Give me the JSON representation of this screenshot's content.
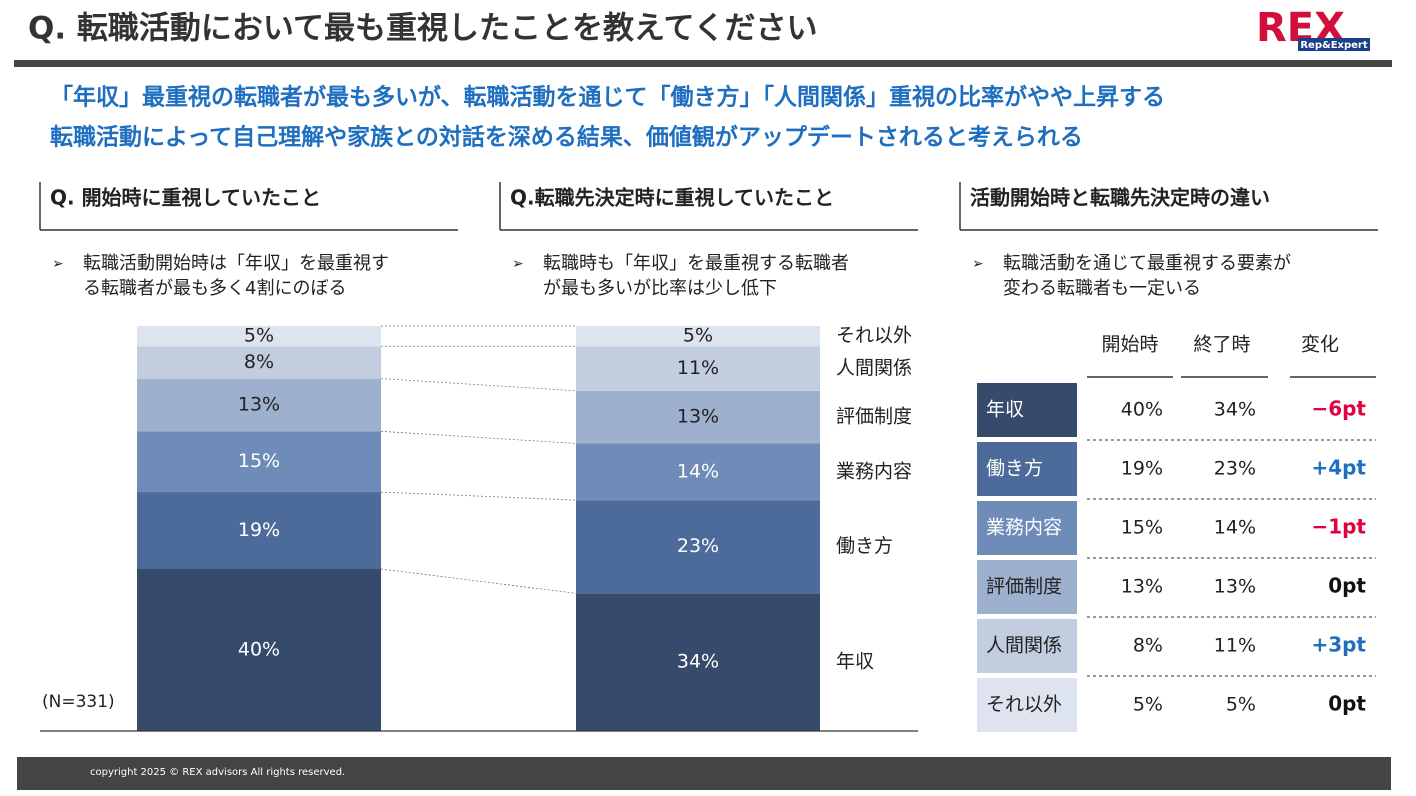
{
  "header": {
    "title": "Q. 転職活動において最も重視したことを教えてください",
    "logo": "REX",
    "logo_sub": "Rep&Expert"
  },
  "headline": [
    "「年収」最重視の転職者が最も多いが、転職活動を通じて「働き方」「人間関係」重視の比率がやや上昇する",
    "転職活動によって自己理解や家族との対話を深める結果、価値観がアップデートされると考えられる"
  ],
  "panels": [
    {
      "heading": "Q. 開始時に重視していたこと",
      "bullet": [
        "転職活動開始時は「年収」を最重視す",
        "る転職者が最も多く4割にのぼる"
      ]
    },
    {
      "heading": "Q.転職先決定時に重視していたこと",
      "bullet": [
        "転職時も「年収」を最重視する転職者",
        "が最も多いが比率は少し低下"
      ]
    },
    {
      "heading": "活動開始時と転職先決定時の違い",
      "bullet": [
        "転職活動を通じて最重視する要素が",
        "変わる転職者も一定いる"
      ]
    }
  ],
  "chart_data": {
    "type": "stacked_bar",
    "categories": [
      null,
      null
    ],
    "series": [
      {
        "name": "年収",
        "color": "#364a6b",
        "values": [
          40,
          34
        ],
        "value_labels": [
          "40%",
          "34%"
        ]
      },
      {
        "name": "働き方",
        "color": "#4d6b9a",
        "values": [
          19,
          23
        ],
        "value_labels": [
          "19%",
          "23%"
        ]
      },
      {
        "name": "業務内容",
        "color": "#6f8bb8",
        "values": [
          15,
          14
        ],
        "value_labels": [
          "15%",
          "14%"
        ]
      },
      {
        "name": "評価制度",
        "color": "#9db0ce",
        "values": [
          13,
          13
        ],
        "value_labels": [
          "13%",
          "13%"
        ]
      },
      {
        "name": "人間関係",
        "color": "#c3cde0",
        "values": [
          8,
          11
        ],
        "value_labels": [
          "8%",
          "11%"
        ]
      },
      {
        "name": "それ以外",
        "color": "#dde3ef",
        "values": [
          5,
          5
        ],
        "value_labels": [
          "5%",
          "5%"
        ]
      }
    ],
    "note": "(N=331)"
  },
  "table": {
    "headers": [
      "開始時",
      "終了時",
      "変化"
    ],
    "rows": [
      [
        "年収",
        "40%",
        "34%",
        "−6pt"
      ],
      [
        "働き方",
        "19%",
        "23%",
        "+4pt"
      ],
      [
        "業務内容",
        "15%",
        "14%",
        "−1pt"
      ],
      [
        "評価制度",
        "13%",
        "13%",
        "0pt"
      ],
      [
        "人間関係",
        "8%",
        "11%",
        "+3pt"
      ],
      [
        "それ以外",
        "5%",
        "5%",
        "0pt"
      ]
    ]
  },
  "footer": "copyright 2025 © REX advisors All rights reserved."
}
